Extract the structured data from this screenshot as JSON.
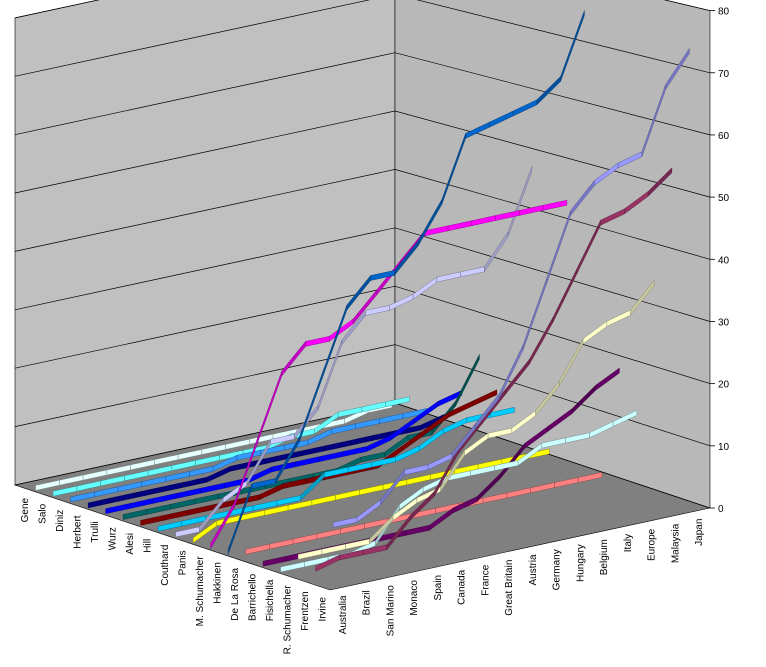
{
  "chart_data": {
    "type": "line",
    "style": "3d-ribbon",
    "x": [
      "Australia",
      "Brazil",
      "San Marino",
      "Monaco",
      "Spain",
      "Canada",
      "France",
      "Great Britain",
      "Austria",
      "Germany",
      "Hungary",
      "Belgium",
      "Italy",
      "Europe",
      "Malaysia",
      "Japan"
    ],
    "y_ticks": [
      "0",
      "10",
      "20",
      "30",
      "40",
      "50",
      "60",
      "70",
      "80"
    ],
    "ylim": [
      0,
      80
    ],
    "grid": true,
    "title": "",
    "xlabel": "",
    "ylabel": "",
    "series": [
      {
        "name": "Irvine",
        "color": "#9999ff",
        "values": [
          10,
          10,
          12,
          16,
          16,
          17,
          21,
          25,
          32,
          42,
          52,
          56,
          58,
          59,
          69,
          74
        ]
      },
      {
        "name": "Frentzen",
        "color": "#993366",
        "values": [
          2,
          3,
          3,
          3,
          7,
          10,
          16,
          20,
          24,
          28,
          34,
          41,
          48,
          49,
          51,
          54
        ]
      },
      {
        "name": "R. Schumacher",
        "color": "#ffffcc",
        "values": [
          3,
          3,
          3,
          3,
          6,
          8,
          9,
          14,
          16,
          16,
          18,
          22,
          28,
          30,
          31,
          35
        ]
      },
      {
        "name": "Fisichella",
        "color": "#ccffff",
        "values": [
          0,
          0,
          0,
          0,
          1,
          6,
          8,
          9,
          9,
          9,
          9,
          11,
          11,
          11,
          12,
          13
        ]
      },
      {
        "name": "Barrichello",
        "color": "#660066",
        "values": [
          0,
          0,
          0,
          0,
          0,
          0,
          0,
          0,
          2,
          3,
          6,
          10,
          12,
          14,
          17,
          19
        ]
      },
      {
        "name": "De La Rosa",
        "color": "#ff8080",
        "values": [
          1,
          1,
          1,
          1,
          1,
          1,
          1,
          1,
          1,
          1,
          1,
          1,
          1,
          1,
          1,
          1
        ]
      },
      {
        "name": "Hakkinen",
        "color": "#0066cc",
        "values": [
          0,
          10,
          10,
          16,
          26,
          36,
          40,
          40,
          44,
          50,
          60,
          61,
          62,
          63,
          66,
          76
        ]
      },
      {
        "name": "M. Schumacher",
        "color": "#ff00ff",
        "values": [
          0,
          6,
          16,
          26,
          30,
          30,
          32,
          36,
          40,
          44,
          44,
          44,
          44,
          44,
          44,
          44
        ]
      },
      {
        "name": "Panis",
        "color": "#ffff00",
        "values": [
          0,
          2,
          2,
          2,
          2,
          2,
          2,
          2,
          2,
          2,
          2,
          2,
          2,
          2,
          2,
          2
        ]
      },
      {
        "name": "Couthard",
        "color": "#ccccff",
        "values": [
          0,
          0,
          4,
          6,
          12,
          12,
          16,
          26,
          30,
          30,
          31,
          33,
          33,
          33,
          38,
          48
        ]
      },
      {
        "name": "Hill",
        "color": "#00ccff",
        "values": [
          0,
          0,
          0,
          0,
          0,
          0,
          0,
          3,
          3,
          3,
          3,
          4,
          6,
          7,
          7,
          7
        ]
      },
      {
        "name": "Alesi",
        "color": "#800000",
        "values": [
          0,
          0,
          0,
          0,
          0,
          0,
          1,
          1,
          1,
          1,
          1,
          3,
          5,
          7,
          8,
          9
        ]
      },
      {
        "name": "Wurz",
        "color": "#006666",
        "values": [
          0,
          0,
          0,
          0,
          0,
          0,
          0,
          0,
          0,
          0,
          1,
          1,
          3,
          3,
          7,
          14
        ]
      },
      {
        "name": "Trulli",
        "color": "#0000ff",
        "values": [
          0,
          0,
          0,
          0,
          0,
          0,
          0,
          1,
          1,
          1,
          1,
          1,
          2,
          4,
          6,
          7
        ]
      },
      {
        "name": "Herbert",
        "color": "#000080",
        "values": [
          0,
          0,
          0,
          0,
          0,
          0,
          1,
          1,
          1,
          1,
          1,
          1,
          1,
          1,
          1,
          2
        ]
      },
      {
        "name": "Diniz",
        "color": "#3399ff",
        "values": [
          0,
          0,
          0,
          0,
          0,
          0,
          0,
          1,
          1,
          1,
          1,
          2,
          2,
          2,
          2,
          2
        ]
      },
      {
        "name": "Salo",
        "color": "#66ffff",
        "values": [
          0,
          0,
          0,
          0,
          0,
          0,
          0,
          0,
          0,
          0,
          1,
          1,
          3,
          3,
          3,
          3
        ]
      },
      {
        "name": "Gene",
        "color": "#e6ffff",
        "values": [
          0,
          0,
          0,
          0,
          0,
          0,
          0,
          0,
          0,
          0,
          0,
          0,
          0,
          0,
          1,
          1
        ]
      }
    ],
    "depth_labels": [
      "Gene",
      "Salo",
      "Diniz",
      "Herbert",
      "Trulli",
      "Wurz",
      "Alesi",
      "Hill",
      "Couthard",
      "Panis",
      "M. Schumacher",
      "Hakkinen",
      "De La Rosa",
      "Barrichello",
      "Fisichella",
      "R. Schumacher",
      "Frentzen",
      "Irvine"
    ]
  }
}
